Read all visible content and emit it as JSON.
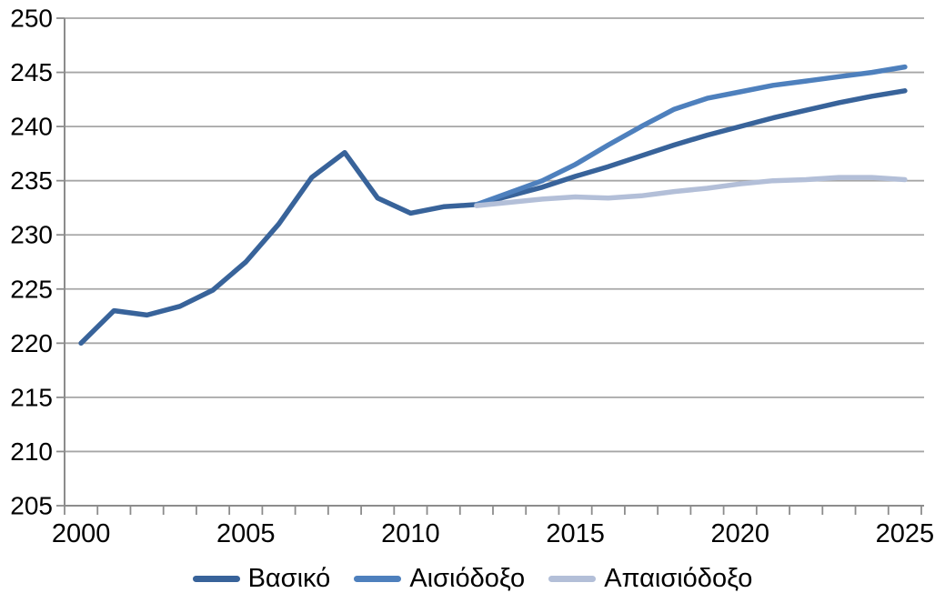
{
  "chart_data": {
    "type": "line",
    "title": "",
    "xlabel": "",
    "ylabel": "",
    "x": [
      2000,
      2001,
      2002,
      2003,
      2004,
      2005,
      2006,
      2007,
      2008,
      2009,
      2010,
      2011,
      2012,
      2013,
      2014,
      2015,
      2016,
      2017,
      2018,
      2019,
      2020,
      2021,
      2022,
      2023,
      2024,
      2025
    ],
    "xtick_labels": [
      "2000",
      "2005",
      "2010",
      "2015",
      "2020",
      "2025"
    ],
    "xtick_positions": [
      0,
      5,
      10,
      15,
      20,
      25
    ],
    "ylim": [
      205,
      250
    ],
    "yticks": [
      205,
      210,
      215,
      220,
      225,
      230,
      235,
      240,
      245,
      250
    ],
    "ytick_labels": [
      "205",
      "210",
      "215",
      "220",
      "225",
      "230",
      "235",
      "240",
      "245",
      "250"
    ],
    "grid": "horizontal",
    "legend_position": "bottom",
    "colors": {
      "grid": "#a6a6a6",
      "axis": "#8c8c8c",
      "text": "#000000",
      "background": "#ffffff"
    },
    "series": [
      {
        "name": "Βασικό",
        "color": "#38639a",
        "values": [
          220.0,
          223.0,
          222.6,
          223.4,
          224.9,
          227.5,
          231.0,
          235.3,
          237.6,
          233.4,
          232.0,
          232.6,
          232.8,
          233.6,
          234.4,
          235.4,
          236.3,
          237.3,
          238.3,
          239.2,
          240.0,
          240.8,
          241.5,
          242.2,
          242.8,
          243.3
        ]
      },
      {
        "name": "Αισιόδοξο",
        "color": "#4e80bd",
        "values": [
          null,
          null,
          null,
          null,
          null,
          null,
          null,
          null,
          null,
          null,
          null,
          null,
          232.8,
          233.9,
          235.0,
          236.5,
          238.3,
          240.0,
          241.6,
          242.6,
          243.2,
          243.8,
          244.2,
          244.6,
          245.0,
          245.5
        ]
      },
      {
        "name": "Απαισιόδοξο",
        "color": "#b3bfd8",
        "values": [
          null,
          null,
          null,
          null,
          null,
          null,
          null,
          null,
          null,
          null,
          null,
          null,
          232.7,
          233.0,
          233.3,
          233.5,
          233.4,
          233.6,
          234.0,
          234.3,
          234.7,
          235.0,
          235.1,
          235.3,
          235.3,
          235.1
        ]
      }
    ]
  }
}
